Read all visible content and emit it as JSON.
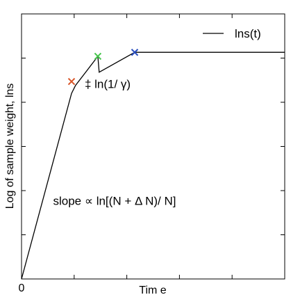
{
  "chart_data": {
    "type": "line",
    "title": "",
    "xlabel": "Tim e",
    "ylabel": "Log of sample weight, lns",
    "x_ticks": [
      {
        "x": 0,
        "label": "0"
      }
    ],
    "y_ticks_unlabeled": 6,
    "xlim": [
      0,
      10
    ],
    "ylim": [
      0,
      10
    ],
    "series": [
      {
        "name": "lns(t)",
        "color": "#000000",
        "points": [
          [
            0,
            0
          ],
          [
            1.9,
            7.0
          ],
          [
            2.05,
            7.3
          ],
          [
            2.9,
            8.4
          ],
          [
            2.95,
            7.8
          ],
          [
            4.3,
            8.55
          ],
          [
            10,
            8.55
          ]
        ]
      }
    ],
    "markers": [
      {
        "x": 1.9,
        "y": 7.45,
        "color": "#d95528",
        "icon": "x-marker"
      },
      {
        "x": 2.9,
        "y": 8.4,
        "color": "#44c54a",
        "icon": "x-marker"
      },
      {
        "x": 4.3,
        "y": 8.55,
        "color": "#2a4fbf",
        "icon": "x-marker"
      }
    ],
    "annotations": [
      {
        "text": "‡  ln(1/ γ)",
        "x": 2.4,
        "y": 7.2
      },
      {
        "text": "slope ∝ ln[(N + Δ N)/ N]",
        "x": 1.2,
        "y": 2.8
      }
    ],
    "legend": {
      "position": "top-right",
      "label": "lns(t)"
    },
    "grid": false
  }
}
